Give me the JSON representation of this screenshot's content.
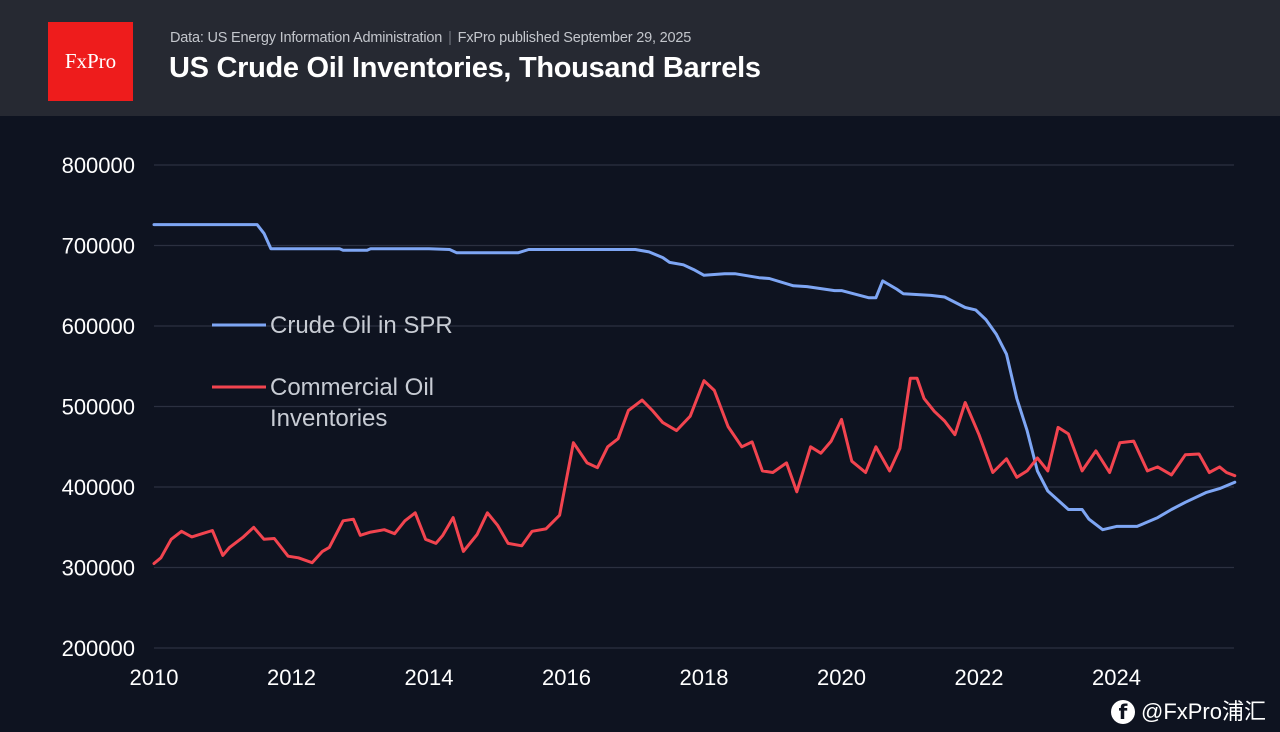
{
  "header": {
    "logo_text": "FxPro",
    "source_text": "Data: US Energy Information Administration",
    "separator": "|",
    "published_text": "FxPro published September 29, 2025",
    "title": "US Crude Oil Inventories, Thousand Barrels"
  },
  "watermark": {
    "icon": "facebook-icon",
    "text": "@FxPro浦汇"
  },
  "colors": {
    "background": "#0e1320",
    "header_bg": "#262932",
    "logo_red": "#ee1c1c",
    "spr": "#7ea6f4",
    "commercial": "#f2444f",
    "grid": "#2b3040",
    "text": "#ffffff",
    "legend_text": "#c8ccd4"
  },
  "chart_data": {
    "type": "line",
    "title": "US Crude Oil Inventories, Thousand Barrels",
    "xlabel": "",
    "ylabel": "",
    "xlim": [
      2010,
      2025.75
    ],
    "ylim": [
      200000,
      800000
    ],
    "grid": true,
    "legend_placement": "upper-left (inside plot)",
    "x_ticks": [
      "2010",
      "2012",
      "2014",
      "2016",
      "2018",
      "2020",
      "2022",
      "2024"
    ],
    "y_ticks": [
      "200000",
      "300000",
      "400000",
      "500000",
      "600000",
      "700000",
      "800000"
    ],
    "series": [
      {
        "name": "Crude Oil in SPR",
        "color": "#7ea6f4",
        "x": [
          2010.0,
          2011.5,
          2011.6,
          2011.7,
          2012.0,
          2012.7,
          2012.75,
          2013.1,
          2013.15,
          2014.0,
          2014.3,
          2014.4,
          2015.0,
          2015.3,
          2015.45,
          2016.0,
          2016.5,
          2017.0,
          2017.2,
          2017.4,
          2017.5,
          2017.7,
          2017.85,
          2018.0,
          2018.3,
          2018.45,
          2018.8,
          2018.95,
          2019.3,
          2019.5,
          2019.9,
          2020.0,
          2020.4,
          2020.5,
          2020.6,
          2020.8,
          2020.9,
          2021.3,
          2021.5,
          2021.8,
          2021.95,
          2022.1,
          2022.25,
          2022.4,
          2022.55,
          2022.7,
          2022.85,
          2023.0,
          2023.3,
          2023.5,
          2023.6,
          2023.8,
          2024.0,
          2024.3,
          2024.6,
          2024.8,
          2025.0,
          2025.3,
          2025.5,
          2025.72
        ],
        "values": [
          726000,
          726000,
          715000,
          696000,
          696000,
          696000,
          694000,
          694000,
          696000,
          696000,
          695000,
          691000,
          691000,
          691000,
          695000,
          695000,
          695000,
          695000,
          692000,
          685000,
          679000,
          676000,
          670000,
          663000,
          665000,
          665000,
          660000,
          659000,
          650000,
          649000,
          644000,
          644000,
          635000,
          635000,
          656000,
          646000,
          640000,
          638000,
          636000,
          623000,
          620000,
          608000,
          590000,
          565000,
          510000,
          470000,
          420000,
          395000,
          372000,
          372000,
          360000,
          347000,
          351000,
          351000,
          362000,
          372000,
          381000,
          393000,
          398000,
          406000
        ]
      },
      {
        "name": "Commercial Oil Inventories",
        "color": "#f2444f",
        "x": [
          2010.0,
          2010.1,
          2010.25,
          2010.4,
          2010.55,
          2010.7,
          2010.85,
          2011.0,
          2011.1,
          2011.3,
          2011.45,
          2011.6,
          2011.75,
          2011.95,
          2012.1,
          2012.3,
          2012.45,
          2012.55,
          2012.75,
          2012.9,
          2013.0,
          2013.15,
          2013.35,
          2013.5,
          2013.65,
          2013.8,
          2013.95,
          2014.1,
          2014.2,
          2014.35,
          2014.5,
          2014.7,
          2014.85,
          2015.0,
          2015.15,
          2015.35,
          2015.5,
          2015.7,
          2015.9,
          2016.1,
          2016.3,
          2016.45,
          2016.6,
          2016.75,
          2016.9,
          2017.1,
          2017.25,
          2017.4,
          2017.6,
          2017.8,
          2018.0,
          2018.15,
          2018.35,
          2018.55,
          2018.7,
          2018.85,
          2019.0,
          2019.2,
          2019.35,
          2019.55,
          2019.7,
          2019.85,
          2020.0,
          2020.15,
          2020.35,
          2020.5,
          2020.7,
          2020.85,
          2021.0,
          2021.1,
          2021.2,
          2021.35,
          2021.5,
          2021.65,
          2021.8,
          2022.0,
          2022.2,
          2022.4,
          2022.55,
          2022.7,
          2022.85,
          2023.0,
          2023.15,
          2023.3,
          2023.5,
          2023.7,
          2023.9,
          2024.05,
          2024.25,
          2024.45,
          2024.6,
          2024.8,
          2025.0,
          2025.2,
          2025.35,
          2025.5,
          2025.6,
          2025.72
        ],
        "values": [
          305000,
          312000,
          335000,
          345000,
          338000,
          342000,
          346000,
          315000,
          325000,
          338000,
          350000,
          335000,
          336000,
          314000,
          312000,
          306000,
          320000,
          325000,
          358000,
          360000,
          340000,
          344000,
          347000,
          342000,
          358000,
          368000,
          335000,
          330000,
          340000,
          362000,
          320000,
          341000,
          368000,
          352000,
          330000,
          327000,
          345000,
          348000,
          365000,
          455000,
          430000,
          424000,
          450000,
          460000,
          495000,
          508000,
          495000,
          480000,
          470000,
          488000,
          532000,
          520000,
          475000,
          450000,
          456000,
          420000,
          418000,
          430000,
          394000,
          450000,
          442000,
          457000,
          484000,
          432000,
          418000,
          450000,
          420000,
          448000,
          535000,
          535000,
          510000,
          494000,
          482000,
          465000,
          505000,
          465000,
          418000,
          435000,
          412000,
          420000,
          436000,
          420000,
          474000,
          466000,
          420000,
          445000,
          418000,
          455000,
          457000,
          420000,
          425000,
          415000,
          440000,
          441000,
          418000,
          425000,
          418000,
          414000
        ]
      }
    ]
  }
}
